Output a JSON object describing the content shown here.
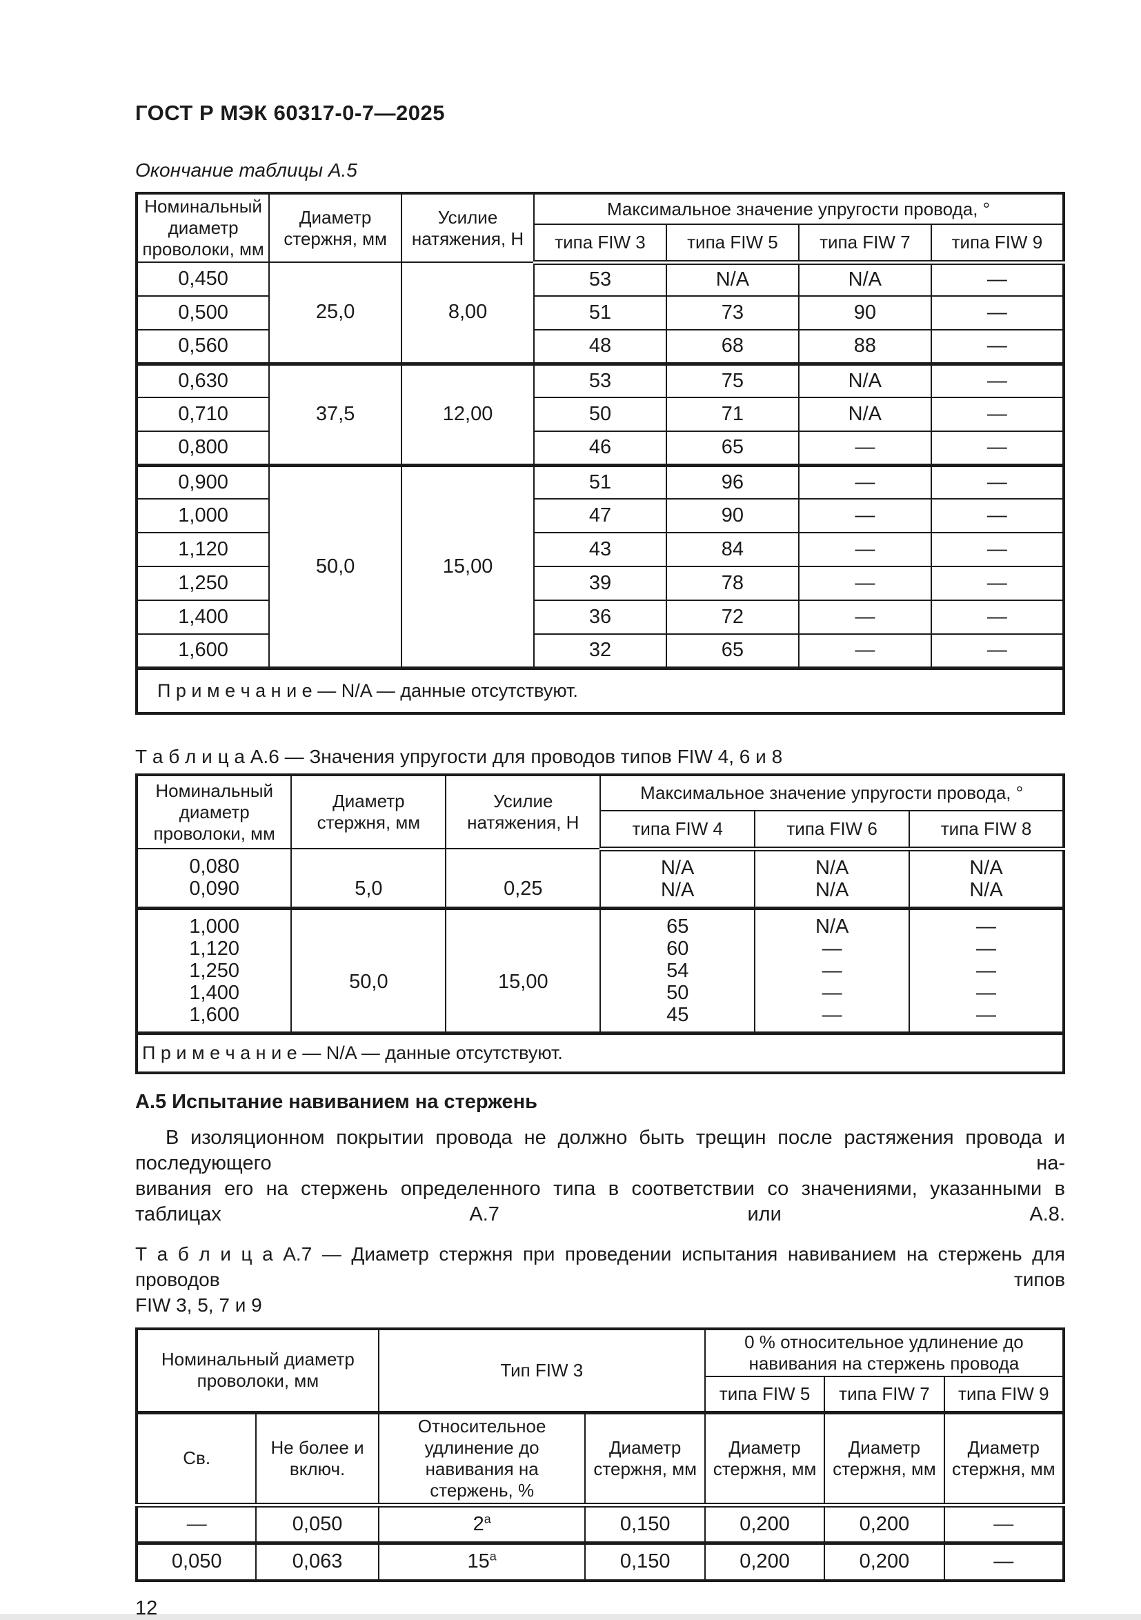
{
  "page": {
    "doc_header": "ГОСТ Р МЭК 60317-0-7—2025",
    "continuation_caption": "Окончание таблицы А.5",
    "section_heading": "А.5  Испытание навиванием на стержень",
    "paragraph_lines": [
      "В изоляционном покрытии провода не должно быть трещин после растяжения провода и последующего на-",
      "вивания его на стержень определенного типа в соответствии со значениями, указанными в таблицах А.7 или А.8."
    ],
    "table_a6_caption": "Т а б л и ц а   А.6 — Значения упругости для проводов типов FIW 4, 6 и 8",
    "table_a7_caption_lines": [
      "Т а б л и ц а   А.7 — Диаметр стержня при проведении испытания навиванием на стержень для проводов типов",
      "FIW 3, 5, 7 и 9"
    ],
    "page_number": "12"
  },
  "tables": {
    "a5": {
      "cls": "t-a5",
      "cols": [
        14.3,
        14.28,
        14.28,
        14.28,
        14.28,
        14.28,
        14.3
      ],
      "header": [
        {
          "h": 44,
          "cells": [
            {
              "t": "Номинальный диаметр проволоки, мм",
              "rs": 2
            },
            {
              "t": "Диаметр стержня, мм",
              "rs": 2
            },
            {
              "t": "Усилие натяжения, Н",
              "rs": 2
            },
            {
              "t": "Максимальное значение упругости провода, °",
              "cs": 4
            }
          ]
        },
        {
          "h": 53,
          "cls": "hdr-last",
          "cells": [
            {
              "t": "типа FIW 3"
            },
            {
              "t": "типа FIW 5"
            },
            {
              "t": "типа FIW 7"
            },
            {
              "t": "типа FIW 9"
            }
          ]
        }
      ],
      "body": [
        {
          "h": 49,
          "cells": [
            {
              "t": "0,450"
            },
            {
              "t": "25,0",
              "rs": 3,
              "cls": "bb"
            },
            {
              "t": "8,00",
              "rs": 3,
              "cls": "bb"
            },
            {
              "t": "53"
            },
            {
              "t": "N/A"
            },
            {
              "t": "N/A"
            },
            {
              "t": "—"
            }
          ]
        },
        {
          "h": 49,
          "cells": [
            {
              "t": "0,500"
            },
            {
              "t": "51"
            },
            {
              "t": "73"
            },
            {
              "t": "90"
            },
            {
              "t": "—"
            }
          ]
        },
        {
          "h": 49,
          "cls": "grp",
          "cells": [
            {
              "t": "0,560"
            },
            {
              "t": "48"
            },
            {
              "t": "68"
            },
            {
              "t": "88"
            },
            {
              "t": "—"
            }
          ]
        },
        {
          "h": 49,
          "cells": [
            {
              "t": "0,630"
            },
            {
              "t": "37,5",
              "rs": 3,
              "cls": "bb"
            },
            {
              "t": "12,00",
              "rs": 3,
              "cls": "bb"
            },
            {
              "t": "53"
            },
            {
              "t": "75"
            },
            {
              "t": "N/A"
            },
            {
              "t": "—"
            }
          ]
        },
        {
          "h": 49,
          "cells": [
            {
              "t": "0,710"
            },
            {
              "t": "50"
            },
            {
              "t": "71"
            },
            {
              "t": "N/A"
            },
            {
              "t": "—"
            }
          ]
        },
        {
          "h": 49,
          "cls": "grp",
          "cells": [
            {
              "t": "0,800"
            },
            {
              "t": "46"
            },
            {
              "t": "65"
            },
            {
              "t": "—"
            },
            {
              "t": "—"
            }
          ]
        },
        {
          "h": 49,
          "cells": [
            {
              "t": "0,900"
            },
            {
              "t": "50,0",
              "rs": 6,
              "cls": "bb"
            },
            {
              "t": "15,00",
              "rs": 6,
              "cls": "bb"
            },
            {
              "t": "51"
            },
            {
              "t": "96"
            },
            {
              "t": "—"
            },
            {
              "t": "—"
            }
          ]
        },
        {
          "h": 49,
          "cells": [
            {
              "t": "1,000"
            },
            {
              "t": "47"
            },
            {
              "t": "90"
            },
            {
              "t": "—"
            },
            {
              "t": "—"
            }
          ]
        },
        {
          "h": 49,
          "cells": [
            {
              "t": "1,120"
            },
            {
              "t": "43"
            },
            {
              "t": "84"
            },
            {
              "t": "—"
            },
            {
              "t": "—"
            }
          ]
        },
        {
          "h": 49,
          "cells": [
            {
              "t": "1,250"
            },
            {
              "t": "39"
            },
            {
              "t": "78"
            },
            {
              "t": "—"
            },
            {
              "t": "—"
            }
          ]
        },
        {
          "h": 49,
          "cells": [
            {
              "t": "1,400"
            },
            {
              "t": "36"
            },
            {
              "t": "72"
            },
            {
              "t": "—"
            },
            {
              "t": "—"
            }
          ]
        },
        {
          "h": 49,
          "cls": "grp",
          "cells": [
            {
              "t": "1,600"
            },
            {
              "t": "32"
            },
            {
              "t": "65"
            },
            {
              "t": "—"
            },
            {
              "t": "—"
            }
          ]
        },
        {
          "note": "П р и м е ч а н и е — N/A — данные отсутствуют.",
          "cs": 7,
          "h": 66
        }
      ]
    },
    "a6": {
      "cls": "t-a6",
      "cols": [
        16.7,
        16.66,
        16.66,
        16.66,
        16.66,
        16.66
      ],
      "header": [
        {
          "h": 52,
          "cells": [
            {
              "t": "Номинальный диаметр проволоки, мм",
              "rs": 2
            },
            {
              "t": "Диаметр стержня, мм",
              "rs": 2
            },
            {
              "t": "Усилие натяжения, Н",
              "rs": 2
            },
            {
              "t": "Максимальное значение упругости провода, °",
              "cs": 3
            }
          ]
        },
        {
          "h": 55,
          "cls": "hdr-last",
          "cells": [
            {
              "t": "типа FIW 4"
            },
            {
              "t": "типа FIW 6"
            },
            {
              "t": "типа FIW 8"
            }
          ]
        }
      ],
      "body": [
        {
          "cls": "grp",
          "cells": [
            {
              "lines": [
                "0,080",
                "0,090"
              ]
            },
            {
              "lines": [
                "",
                "5,0"
              ]
            },
            {
              "lines": [
                "",
                "0,25"
              ]
            },
            {
              "lines": [
                "N/A",
                "N/A"
              ]
            },
            {
              "lines": [
                "N/A",
                "N/A"
              ]
            },
            {
              "lines": [
                "N/A",
                "N/A"
              ]
            }
          ]
        },
        {
          "cls": "grp",
          "cells": [
            {
              "lines": [
                "1,000",
                "1,120",
                "1,250",
                "1,400",
                "1,600"
              ]
            },
            {
              "lines": [
                "",
                "50,0"
              ]
            },
            {
              "lines": [
                "",
                "15,00"
              ]
            },
            {
              "lines": [
                "65",
                "60",
                "54",
                "50",
                "45"
              ]
            },
            {
              "lines": [
                "N/A",
                "—",
                "—",
                "—",
                "—"
              ]
            },
            {
              "lines": [
                "—",
                "—",
                "—",
                "—",
                "—"
              ]
            }
          ]
        },
        {
          "note": "П р и м е ч а н и е — N/A — данные отсутствуют.",
          "cs": 6,
          "h": 58
        }
      ]
    },
    "a7": {
      "cls": "t-a7",
      "cols": [
        12.9,
        13.2,
        22.3,
        12.9,
        12.9,
        12.9,
        12.9
      ],
      "header": [
        {
          "h": 56,
          "cells": [
            {
              "t": "Номинальный диаметр проволоки, мм",
              "cs": 2,
              "rs": 2
            },
            {
              "t": "Тип FIW 3",
              "cs": 2,
              "rs": 2
            },
            {
              "t": "0 % относительное удлинение до навивания на стержень провода",
              "cs": 3
            }
          ]
        },
        {
          "h": 52,
          "cells": [
            {
              "t": "типа FIW 5"
            },
            {
              "t": "типа FIW 7"
            },
            {
              "t": "типа FIW 9"
            }
          ]
        },
        {
          "h": 104,
          "cls": "hdr-last tt",
          "cells": [
            {
              "t": "Св."
            },
            {
              "t": "Не более и включ."
            },
            {
              "t": "Относительное удлинение до навивания на стержень, %"
            },
            {
              "t": "Диаметр стержня, мм"
            },
            {
              "t": "Диаметр стержня, мм"
            },
            {
              "t": "Диаметр стержня, мм"
            },
            {
              "t": "Диаметр стержня, мм"
            }
          ]
        }
      ],
      "body": [
        {
          "h": 55,
          "cls": "grp",
          "cells": [
            {
              "t": "—"
            },
            {
              "t": "0,050"
            },
            {
              "t": "2",
              "sup": "a"
            },
            {
              "t": "0,150"
            },
            {
              "t": "0,200"
            },
            {
              "t": "0,200"
            },
            {
              "t": "—"
            }
          ]
        },
        {
          "h": 55,
          "cells": [
            {
              "t": "0,050"
            },
            {
              "t": "0,063"
            },
            {
              "t": "15",
              "sup": "a"
            },
            {
              "t": "0,150"
            },
            {
              "t": "0,200"
            },
            {
              "t": "0,200"
            },
            {
              "t": "—"
            }
          ]
        }
      ]
    }
  }
}
